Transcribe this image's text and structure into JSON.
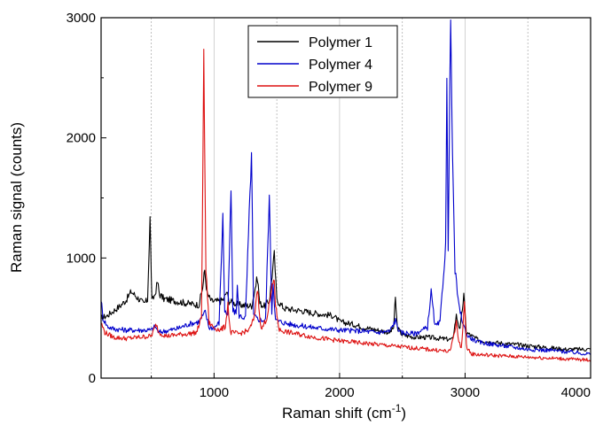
{
  "chart_data": {
    "type": "line",
    "title": "",
    "xlabel": "Raman shift (cm",
    "xlabel_sup": "-1",
    "xlabel_close": ")",
    "ylabel": "Raman signal (counts)",
    "xlim": [
      100,
      4000
    ],
    "ylim": [
      0,
      3000
    ],
    "xticks": [
      1000,
      2000,
      3000,
      4000
    ],
    "yticks": [
      0,
      1000,
      2000,
      3000
    ],
    "xtick_labels": [
      "1000",
      "2000",
      "3000",
      "4000"
    ],
    "ytick_labels": [
      "0",
      "1000",
      "2000",
      "3000"
    ],
    "grid": "vertical dotted at 500, 1500, 2500, 3500; solid at 1000, 2000, 3000",
    "legend_position": "top-center",
    "series": [
      {
        "name": "Polymer 1",
        "color": "#000000",
        "points": [
          [
            100,
            500
          ],
          [
            150,
            520
          ],
          [
            200,
            560
          ],
          [
            250,
            600
          ],
          [
            300,
            650
          ],
          [
            340,
            720
          ],
          [
            370,
            690
          ],
          [
            400,
            660
          ],
          [
            440,
            620
          ],
          [
            470,
            650
          ],
          [
            490,
            1330
          ],
          [
            505,
            640
          ],
          [
            530,
            700
          ],
          [
            550,
            800
          ],
          [
            565,
            700
          ],
          [
            600,
            660
          ],
          [
            700,
            640
          ],
          [
            800,
            620
          ],
          [
            880,
            610
          ],
          [
            910,
            760
          ],
          [
            925,
            900
          ],
          [
            945,
            700
          ],
          [
            980,
            640
          ],
          [
            1050,
            640
          ],
          [
            1080,
            660
          ],
          [
            1100,
            720
          ],
          [
            1120,
            640
          ],
          [
            1200,
            610
          ],
          [
            1300,
            600
          ],
          [
            1345,
            840
          ],
          [
            1365,
            620
          ],
          [
            1400,
            600
          ],
          [
            1440,
            640
          ],
          [
            1480,
            1030
          ],
          [
            1500,
            650
          ],
          [
            1560,
            580
          ],
          [
            1700,
            560
          ],
          [
            1800,
            540
          ],
          [
            1950,
            520
          ],
          [
            2000,
            470
          ],
          [
            2100,
            450
          ],
          [
            2200,
            420
          ],
          [
            2300,
            400
          ],
          [
            2400,
            380
          ],
          [
            2430,
            420
          ],
          [
            2445,
            660
          ],
          [
            2460,
            420
          ],
          [
            2500,
            360
          ],
          [
            2600,
            340
          ],
          [
            2700,
            340
          ],
          [
            2800,
            330
          ],
          [
            2900,
            320
          ],
          [
            2930,
            520
          ],
          [
            2960,
            400
          ],
          [
            2990,
            690
          ],
          [
            3010,
            380
          ],
          [
            3100,
            320
          ],
          [
            3200,
            300
          ],
          [
            3300,
            290
          ],
          [
            3400,
            280
          ],
          [
            3500,
            270
          ],
          [
            3600,
            260
          ],
          [
            3700,
            250
          ],
          [
            3800,
            240
          ],
          [
            3900,
            240
          ],
          [
            4000,
            240
          ]
        ]
      },
      {
        "name": "Polymer 4",
        "color": "#0000cc",
        "points": [
          [
            100,
            660
          ],
          [
            115,
            500
          ],
          [
            150,
            430
          ],
          [
            200,
            410
          ],
          [
            300,
            400
          ],
          [
            400,
            400
          ],
          [
            500,
            400
          ],
          [
            530,
            430
          ],
          [
            560,
            380
          ],
          [
            600,
            390
          ],
          [
            700,
            410
          ],
          [
            800,
            450
          ],
          [
            880,
            470
          ],
          [
            930,
            550
          ],
          [
            960,
            420
          ],
          [
            1000,
            420
          ],
          [
            1040,
            460
          ],
          [
            1070,
            1340
          ],
          [
            1085,
            560
          ],
          [
            1110,
            520
          ],
          [
            1135,
            1560
          ],
          [
            1150,
            560
          ],
          [
            1175,
            540
          ],
          [
            1185,
            760
          ],
          [
            1200,
            520
          ],
          [
            1250,
            500
          ],
          [
            1298,
            1870
          ],
          [
            1315,
            520
          ],
          [
            1350,
            490
          ],
          [
            1410,
            480
          ],
          [
            1440,
            1520
          ],
          [
            1460,
            550
          ],
          [
            1470,
            800
          ],
          [
            1490,
            480
          ],
          [
            1600,
            450
          ],
          [
            1800,
            420
          ],
          [
            2000,
            400
          ],
          [
            2200,
            390
          ],
          [
            2300,
            380
          ],
          [
            2400,
            390
          ],
          [
            2445,
            480
          ],
          [
            2480,
            380
          ],
          [
            2600,
            370
          ],
          [
            2700,
            420
          ],
          [
            2730,
            720
          ],
          [
            2760,
            430
          ],
          [
            2800,
            460
          ],
          [
            2845,
            1100
          ],
          [
            2855,
            2460
          ],
          [
            2865,
            1100
          ],
          [
            2885,
            3000
          ],
          [
            2900,
            1800
          ],
          [
            2920,
            900
          ],
          [
            2950,
            600
          ],
          [
            2990,
            430
          ],
          [
            3020,
            350
          ],
          [
            3100,
            300
          ],
          [
            3300,
            270
          ],
          [
            3500,
            240
          ],
          [
            3700,
            230
          ],
          [
            3900,
            210
          ],
          [
            4000,
            200
          ]
        ]
      },
      {
        "name": "Polymer 9",
        "color": "#dd1111",
        "points": [
          [
            100,
            460
          ],
          [
            130,
            380
          ],
          [
            200,
            340
          ],
          [
            300,
            330
          ],
          [
            400,
            340
          ],
          [
            500,
            350
          ],
          [
            540,
            450
          ],
          [
            560,
            380
          ],
          [
            620,
            350
          ],
          [
            700,
            360
          ],
          [
            800,
            370
          ],
          [
            860,
            380
          ],
          [
            900,
            500
          ],
          [
            918,
            2650
          ],
          [
            935,
            900
          ],
          [
            960,
            460
          ],
          [
            1000,
            420
          ],
          [
            1050,
            400
          ],
          [
            1090,
            430
          ],
          [
            1110,
            620
          ],
          [
            1130,
            380
          ],
          [
            1200,
            370
          ],
          [
            1280,
            400
          ],
          [
            1320,
            500
          ],
          [
            1345,
            750
          ],
          [
            1375,
            400
          ],
          [
            1420,
            500
          ],
          [
            1470,
            790
          ],
          [
            1480,
            820
          ],
          [
            1490,
            600
          ],
          [
            1520,
            400
          ],
          [
            1600,
            380
          ],
          [
            1800,
            340
          ],
          [
            2000,
            310
          ],
          [
            2200,
            290
          ],
          [
            2400,
            270
          ],
          [
            2600,
            250
          ],
          [
            2800,
            230
          ],
          [
            2880,
            220
          ],
          [
            2930,
            460
          ],
          [
            2950,
            300
          ],
          [
            2970,
            250
          ],
          [
            2995,
            630
          ],
          [
            3010,
            270
          ],
          [
            3050,
            200
          ],
          [
            3200,
            190
          ],
          [
            3400,
            180
          ],
          [
            3600,
            170
          ],
          [
            3800,
            160
          ],
          [
            4000,
            150
          ]
        ]
      }
    ]
  }
}
